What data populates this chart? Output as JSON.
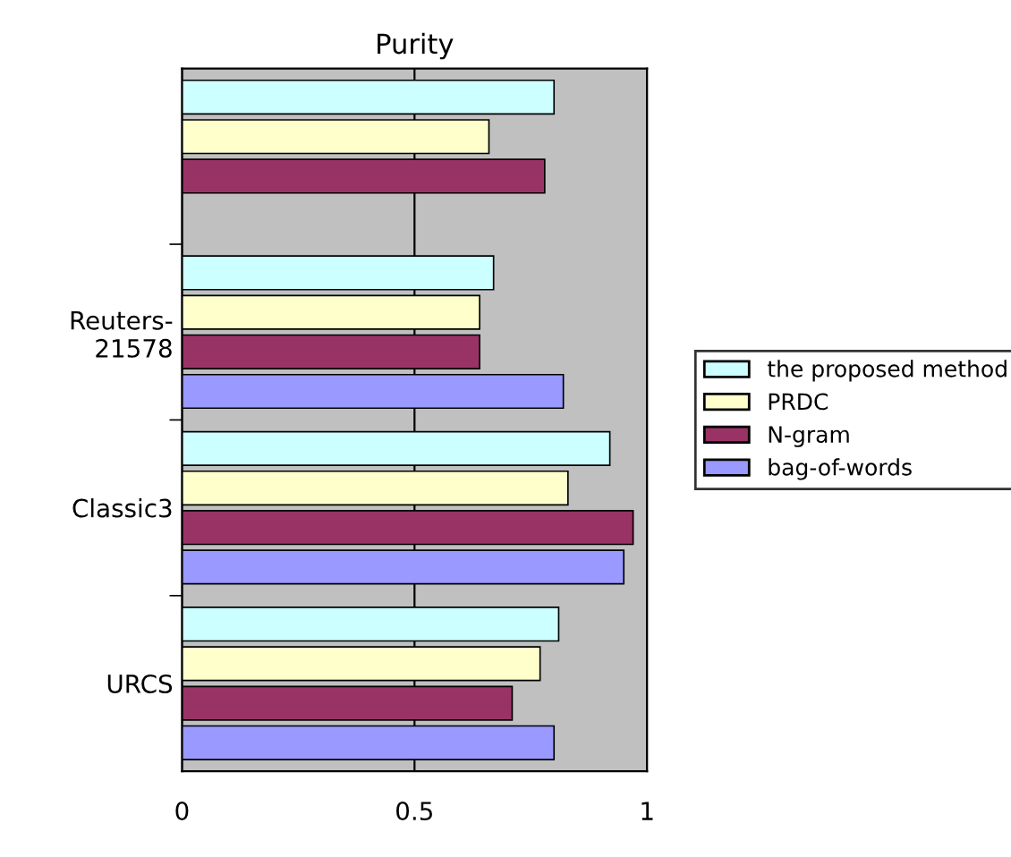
{
  "chart_data": {
    "type": "bar",
    "title": "Purity",
    "orientation": "horizontal",
    "categories": [
      null,
      "Reuters-\n21578",
      "Classic3",
      "URCS"
    ],
    "series": [
      {
        "name": "the proposed method",
        "color": "#ccffff",
        "values": [
          0.8,
          0.67,
          0.92,
          0.81
        ]
      },
      {
        "name": "PRDC",
        "color": "#ffffcc",
        "values": [
          0.66,
          0.64,
          0.83,
          0.77
        ]
      },
      {
        "name": "N-gram",
        "color": "#993366",
        "values": [
          0.78,
          0.64,
          0.97,
          0.71
        ]
      },
      {
        "name": "bag-of-words",
        "color": "#9999ff",
        "values": [
          null,
          0.82,
          0.95,
          0.8
        ]
      }
    ],
    "xlim": [
      0,
      1
    ],
    "xticks": [
      0,
      0.5,
      1
    ],
    "grid": "x",
    "legend": "right"
  }
}
